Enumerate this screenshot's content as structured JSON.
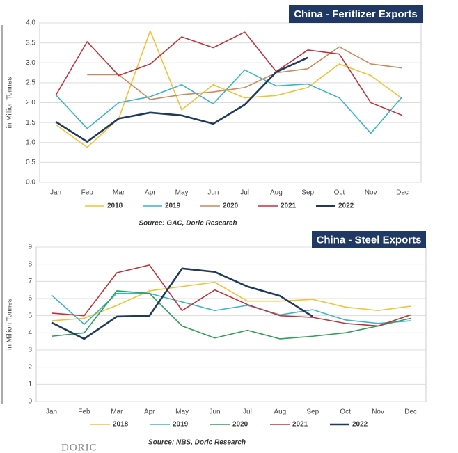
{
  "chart_data": [
    {
      "type": "line",
      "title": "China - Feritlizer Exports",
      "y_label": "in Million Tonnes",
      "source": "Source: GAC, Doric Research",
      "categories": [
        "Jan",
        "Feb",
        "Mar",
        "Apr",
        "May",
        "Jun",
        "Jul",
        "Aug",
        "Sep",
        "Oct",
        "Nov",
        "Dec"
      ],
      "ylim": [
        0,
        4
      ],
      "yticks": [
        {
          "value": 0,
          "label": "0.0"
        },
        0.5,
        {
          "value": 1,
          "label": "1.0"
        },
        1.5,
        {
          "value": 2,
          "label": "2.0"
        },
        2.5,
        {
          "value": 3,
          "label": "3.0"
        },
        3.5,
        {
          "value": 4,
          "label": "4.0"
        }
      ],
      "grid": true,
      "series": [
        {
          "name": "2018",
          "color": "#f2c233",
          "values": [
            1.45,
            0.88,
            1.6,
            3.8,
            1.82,
            2.45,
            2.12,
            2.18,
            2.38,
            2.97,
            2.68,
            2.1
          ]
        },
        {
          "name": "2019",
          "color": "#3bb3c8",
          "values": [
            2.2,
            1.35,
            2.0,
            2.15,
            2.45,
            1.97,
            2.82,
            2.42,
            2.47,
            2.12,
            1.23,
            2.15
          ]
        },
        {
          "name": "2020",
          "color": "#c98a5c",
          "values": [
            null,
            2.7,
            2.7,
            2.08,
            2.2,
            2.27,
            2.38,
            2.75,
            2.85,
            3.4,
            2.97,
            2.87
          ]
        },
        {
          "name": "2021",
          "color": "#c0323a",
          "values": [
            2.18,
            3.53,
            2.68,
            2.97,
            3.65,
            3.38,
            3.77,
            2.78,
            3.32,
            3.22,
            2.0,
            1.68
          ]
        },
        {
          "name": "2022",
          "color": "#1f3a5a",
          "values": [
            1.52,
            1.02,
            1.6,
            1.75,
            1.68,
            1.47,
            1.95,
            2.77,
            3.13,
            null,
            null,
            null
          ]
        }
      ]
    },
    {
      "type": "line",
      "title": "China - Steel Exports",
      "y_label": "in Million Tonnes",
      "source": "Source: NBS, Doric Research",
      "categories": [
        "Jan",
        "Feb",
        "Mar",
        "Apr",
        "May",
        "Jun",
        "Jul",
        "Aug",
        "Sep",
        "Oct",
        "Nov",
        "Dec"
      ],
      "ylim": [
        0,
        9
      ],
      "yticks": [
        0,
        1,
        2,
        3,
        4,
        5,
        6,
        7,
        8,
        9
      ],
      "grid": true,
      "series": [
        {
          "name": "2018",
          "color": "#f2c233",
          "values": [
            4.7,
            4.85,
            5.6,
            6.45,
            6.7,
            6.95,
            5.85,
            5.85,
            5.95,
            5.5,
            5.3,
            5.55
          ]
        },
        {
          "name": "2019",
          "color": "#3bb3c8",
          "values": [
            6.2,
            4.5,
            6.3,
            6.3,
            5.8,
            5.3,
            5.6,
            5.05,
            5.35,
            4.75,
            4.55,
            4.7
          ]
        },
        {
          "name": "2020",
          "color": "#2e9e5a",
          "values": [
            3.8,
            4.0,
            6.45,
            6.3,
            4.4,
            3.7,
            4.15,
            3.65,
            3.8,
            4.0,
            4.4,
            4.85
          ]
        },
        {
          "name": "2021",
          "color": "#c0323a",
          "values": [
            5.15,
            5.0,
            7.5,
            7.95,
            5.3,
            6.5,
            5.65,
            5.0,
            4.9,
            4.55,
            4.4,
            5.05
          ]
        },
        {
          "name": "2022",
          "color": "#1f3a5a",
          "values": [
            4.6,
            3.65,
            4.95,
            5.0,
            7.75,
            7.55,
            6.7,
            6.15,
            4.95,
            null,
            null,
            null
          ]
        }
      ]
    }
  ],
  "logo": "DORIC"
}
